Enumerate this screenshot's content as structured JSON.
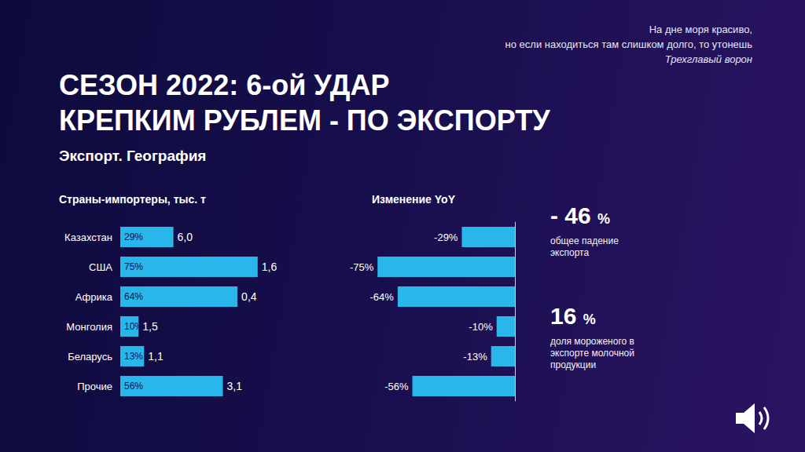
{
  "header": {
    "quote_lines": [
      "На дне моря красиво,",
      "но если находиться там слишком долго, то утонешь"
    ],
    "quote_author": "Трехглавый ворон",
    "title_lines": [
      "СЕЗОН 2022: 6-ой УДАР",
      "КРЕПКИМ РУБЛЕМ - ПО ЭКСПОРТУ"
    ],
    "subtitle": "Экспорт. География"
  },
  "chart_data": [
    {
      "type": "bar",
      "title": "Страны-импортеры, тыс. т",
      "orientation": "horizontal",
      "categories": [
        "Казахстан",
        "США",
        "Африка",
        "Монголия",
        "Беларусь",
        "Прочие"
      ],
      "values": [
        29,
        75,
        64,
        10,
        13,
        56
      ],
      "value_labels": [
        "29%",
        "75%",
        "64%",
        "10%",
        "13%",
        "56%"
      ],
      "end_labels": [
        "6,0",
        "1,6",
        "0,4",
        "1,5",
        "1,1",
        "3,1"
      ],
      "color": "#29b6ea",
      "xlim": [
        0,
        100
      ],
      "xticks": [
        0,
        100
      ],
      "grid": false,
      "data_labels": true,
      "tick_labels": "y"
    },
    {
      "type": "bar",
      "title": "Изменение YoY",
      "orientation": "horizontal",
      "categories": [
        "Казахстан",
        "США",
        "Африка",
        "Монголия",
        "Беларусь",
        "Прочие"
      ],
      "values": [
        -29,
        -75,
        -64,
        -10,
        -13,
        -56
      ],
      "value_labels": [
        "-29%",
        "-75%",
        "-64%",
        "-10%",
        "-13%",
        "-56%"
      ],
      "color": "#29b6ea",
      "xlim": [
        -100,
        0
      ],
      "xticks": [
        -100,
        0
      ],
      "grid": false,
      "data_labels": true,
      "tick_labels": false
    }
  ],
  "kpis": [
    {
      "label": "- 46",
      "unit": "%",
      "text": "общее падение экспорта"
    },
    {
      "label": "16",
      "unit": "%",
      "text": "доля мороженого в экспорте молочной продукции"
    }
  ]
}
